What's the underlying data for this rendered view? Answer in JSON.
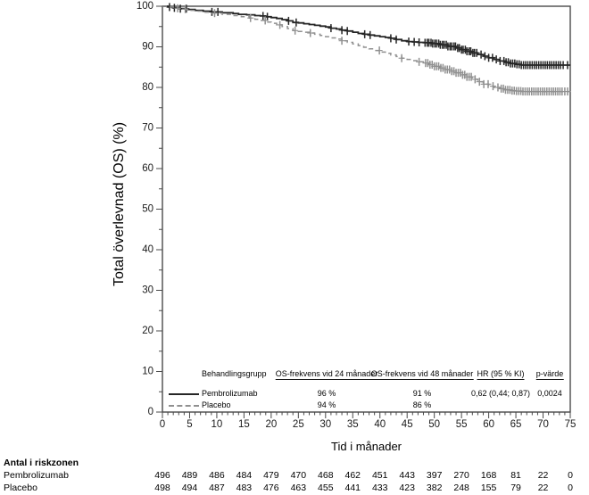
{
  "chart_data": {
    "type": "line",
    "subtype": "kaplan-meier",
    "title": "",
    "xlabel": "Tid i månader",
    "ylabel": "Total överlevnad (OS) (%)",
    "xlim": [
      0,
      75
    ],
    "ylim": [
      0,
      100
    ],
    "x_major_ticks": [
      0,
      5,
      10,
      15,
      20,
      25,
      30,
      35,
      40,
      45,
      50,
      55,
      60,
      65,
      70,
      75
    ],
    "x_minor_step": 1,
    "y_major_ticks": [
      0,
      10,
      20,
      30,
      40,
      50,
      60,
      70,
      80,
      90,
      100
    ],
    "y_minor_step": 5,
    "grid": false,
    "frame": true,
    "frame_color": "#4a4a4a",
    "series": [
      {
        "name": "Pembrolizumab",
        "color": "#262626",
        "dash": "solid",
        "points": [
          [
            0,
            100
          ],
          [
            1,
            99.8
          ],
          [
            2,
            99.6
          ],
          [
            3,
            99.4
          ],
          [
            4.5,
            99.2
          ],
          [
            6,
            99.0
          ],
          [
            7.5,
            98.8
          ],
          [
            9,
            98.6
          ],
          [
            11,
            98.4
          ],
          [
            13,
            98.2
          ],
          [
            14,
            98.0
          ],
          [
            15.5,
            97.9
          ],
          [
            17,
            97.7
          ],
          [
            18,
            97.6
          ],
          [
            19,
            97.4
          ],
          [
            20,
            97.2
          ],
          [
            21,
            97.0
          ],
          [
            22,
            96.7
          ],
          [
            23,
            96.4
          ],
          [
            24,
            96.0
          ],
          [
            25,
            95.9
          ],
          [
            26,
            95.7
          ],
          [
            27,
            95.5
          ],
          [
            28,
            95.3
          ],
          [
            29,
            95.1
          ],
          [
            30,
            94.9
          ],
          [
            31,
            94.6
          ],
          [
            32,
            94.4
          ],
          [
            33,
            94.1
          ],
          [
            34,
            93.9
          ],
          [
            35,
            93.6
          ],
          [
            36,
            93.3
          ],
          [
            37,
            93.1
          ],
          [
            38,
            92.9
          ],
          [
            39,
            92.7
          ],
          [
            40,
            92.5
          ],
          [
            41,
            92.3
          ],
          [
            42,
            92.1
          ],
          [
            43,
            91.8
          ],
          [
            44,
            91.5
          ],
          [
            45,
            91.3
          ],
          [
            46,
            91.2
          ],
          [
            47,
            91.1
          ],
          [
            48,
            91.0
          ],
          [
            49.5,
            90.8
          ],
          [
            51,
            90.5
          ],
          [
            52.5,
            90.1
          ],
          [
            54,
            89.7
          ],
          [
            55,
            89.3
          ],
          [
            56,
            88.9
          ],
          [
            57,
            88.5
          ],
          [
            58,
            88.1
          ],
          [
            59,
            87.7
          ],
          [
            60,
            87.3
          ],
          [
            61,
            86.9
          ],
          [
            62,
            86.5
          ],
          [
            63,
            86.2
          ],
          [
            64,
            85.9
          ],
          [
            65,
            85.7
          ],
          [
            66,
            85.5
          ],
          [
            75,
            85.5
          ]
        ],
        "censor_times": [
          1.3,
          2.2,
          3.3,
          4.4,
          9.1,
          10.2,
          18.5,
          19.3,
          23.2,
          24.6,
          31.0,
          33.0,
          34.0,
          37.2,
          38.2,
          42.0,
          43.0,
          45.3,
          46.3,
          47.2,
          48.3,
          48.7,
          49.0,
          49.4,
          49.7,
          50.1,
          50.4,
          50.8,
          51.1,
          51.5,
          51.8,
          52.2,
          52.5,
          52.9,
          53.2,
          53.6,
          53.9,
          54.3,
          54.6,
          55.0,
          55.3,
          55.7,
          56.0,
          56.4,
          56.7,
          57.1,
          57.4,
          57.8,
          58.6,
          59.3,
          60.0,
          60.7,
          61.4,
          62.1,
          62.8,
          63.2,
          63.6,
          64.0,
          64.4,
          64.8,
          65.2,
          65.6,
          66.0,
          66.4,
          66.8,
          67.2,
          67.6,
          68.0,
          68.4,
          68.8,
          69.2,
          69.6,
          70.0,
          70.4,
          70.8,
          71.2,
          71.6,
          72.0,
          72.4,
          72.8,
          73.2,
          73.7,
          74.5
        ]
      },
      {
        "name": "Placebo",
        "color": "#909090",
        "dash": "dashed",
        "points": [
          [
            0,
            100
          ],
          [
            1,
            99.8
          ],
          [
            2,
            99.5
          ],
          [
            3,
            99.3
          ],
          [
            4.5,
            99.0
          ],
          [
            6,
            98.8
          ],
          [
            7.5,
            98.5
          ],
          [
            9,
            98.3
          ],
          [
            11,
            98.0
          ],
          [
            13,
            97.7
          ],
          [
            14.5,
            97.4
          ],
          [
            16,
            97.1
          ],
          [
            17,
            96.8
          ],
          [
            18,
            96.5
          ],
          [
            19,
            96.1
          ],
          [
            20,
            95.8
          ],
          [
            21,
            95.4
          ],
          [
            22,
            95.0
          ],
          [
            23,
            94.5
          ],
          [
            24,
            94.0
          ],
          [
            25,
            93.8
          ],
          [
            26,
            93.6
          ],
          [
            27,
            93.4
          ],
          [
            28,
            93.1
          ],
          [
            29,
            92.8
          ],
          [
            30,
            92.5
          ],
          [
            31,
            92.2
          ],
          [
            32,
            91.9
          ],
          [
            33,
            91.5
          ],
          [
            34,
            91.1
          ],
          [
            35,
            90.7
          ],
          [
            36,
            90.3
          ],
          [
            37,
            89.9
          ],
          [
            38,
            89.5
          ],
          [
            39,
            89.1
          ],
          [
            40,
            88.7
          ],
          [
            41,
            88.4
          ],
          [
            42,
            88.0
          ],
          [
            43,
            87.6
          ],
          [
            44,
            87.2
          ],
          [
            45,
            86.9
          ],
          [
            46,
            86.6
          ],
          [
            47,
            86.3
          ],
          [
            48,
            86.0
          ],
          [
            49,
            85.6
          ],
          [
            50,
            85.2
          ],
          [
            51,
            84.8
          ],
          [
            52,
            84.4
          ],
          [
            53,
            84.0
          ],
          [
            54,
            83.6
          ],
          [
            55,
            83.1
          ],
          [
            56,
            82.6
          ],
          [
            57,
            82.0
          ],
          [
            58,
            81.4
          ],
          [
            59,
            80.8
          ],
          [
            60,
            80.3
          ],
          [
            61,
            80.0
          ],
          [
            62,
            79.7
          ],
          [
            63,
            79.4
          ],
          [
            64,
            79.2
          ],
          [
            65,
            79.1
          ],
          [
            66,
            79.0
          ],
          [
            75,
            79.0
          ]
        ],
        "censor_times": [
          2.8,
          4.2,
          9.6,
          16.2,
          18.9,
          21.6,
          24.4,
          27.2,
          33.0,
          39.9,
          44.0,
          47.2,
          48.4,
          48.8,
          49.2,
          49.6,
          50.0,
          50.4,
          50.8,
          51.2,
          51.6,
          52.0,
          52.4,
          52.8,
          53.2,
          53.6,
          54.0,
          54.4,
          54.8,
          55.2,
          55.6,
          56.0,
          56.4,
          56.8,
          57.5,
          58.3,
          59.1,
          59.9,
          60.8,
          61.7,
          62.3,
          62.7,
          63.1,
          63.5,
          63.9,
          64.3,
          64.7,
          65.1,
          65.5,
          65.9,
          66.3,
          66.7,
          67.1,
          67.5,
          67.9,
          68.3,
          68.7,
          69.1,
          69.5,
          69.9,
          70.3,
          70.7,
          71.1,
          71.5,
          71.9,
          72.3,
          72.7,
          73.1,
          73.5,
          74.0,
          74.5
        ]
      }
    ],
    "legend_table": {
      "col_group": "Behandlingsgrupp",
      "col_os24": "OS-frekvens vid 24 månader",
      "col_os48": "OS-frekvens vid 48 månader",
      "col_hr": "HR (95 % KI)",
      "col_p": "p-värde",
      "rows": [
        {
          "group": "Pembrolizumab",
          "os24": "96 %",
          "os48": "91 %",
          "hr": "0,62 (0,44; 0,87)",
          "p": "0,0024"
        },
        {
          "group": "Placebo",
          "os24": "94 %",
          "os48": "86 %"
        }
      ]
    },
    "risk_table": {
      "title": "Antal i riskzonen",
      "times": [
        0,
        5,
        10,
        15,
        20,
        25,
        30,
        35,
        40,
        45,
        50,
        55,
        60,
        65,
        70,
        75
      ],
      "rows": [
        {
          "name": "Pembrolizumab",
          "counts": [
            "496",
            "489",
            "486",
            "484",
            "479",
            "470",
            "468",
            "462",
            "451",
            "443",
            "397",
            "270",
            "168",
            "81",
            "22",
            "0"
          ]
        },
        {
          "name": "Placebo",
          "counts": [
            "498",
            "494",
            "487",
            "483",
            "476",
            "463",
            "455",
            "441",
            "433",
            "423",
            "382",
            "248",
            "155",
            "79",
            "22",
            "0"
          ]
        }
      ]
    }
  }
}
